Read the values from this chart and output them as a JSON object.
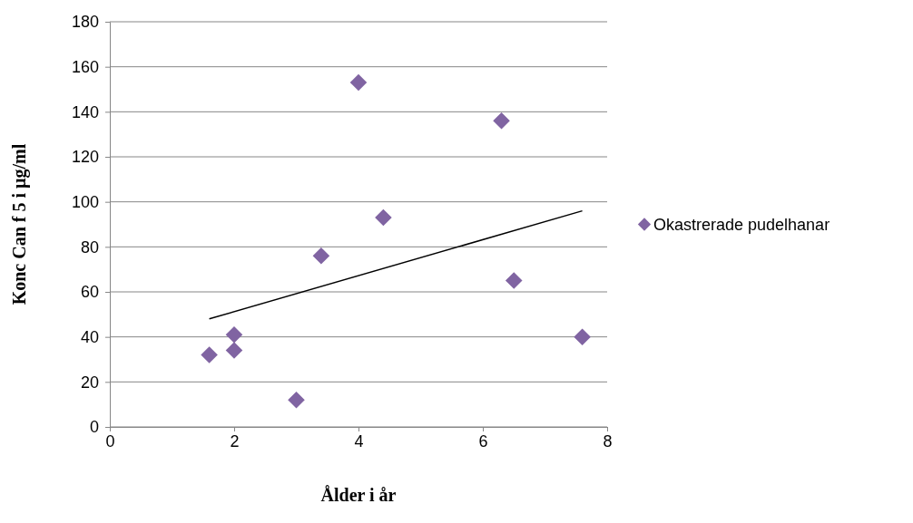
{
  "chart_data": {
    "type": "scatter",
    "xlabel": "Ålder i år",
    "ylabel": "Konc Can f 5 i µg/ml",
    "xlim": [
      0,
      8
    ],
    "xticks": [
      0,
      2,
      4,
      6,
      8
    ],
    "ylim": [
      0,
      180
    ],
    "yticks": [
      0,
      20,
      40,
      60,
      80,
      100,
      120,
      140,
      160,
      180
    ],
    "grid": "y",
    "legend": "right",
    "series": [
      {
        "name": "Okastrerade pudelhanar",
        "color": "#8064a2",
        "marker": "diamond",
        "x": [
          1.6,
          2,
          2,
          3,
          3.4,
          4,
          4.4,
          6.3,
          6.5,
          7.6
        ],
        "values": [
          32,
          41,
          34,
          12,
          76,
          153,
          93,
          136,
          65,
          40
        ]
      },
      {
        "type": "line",
        "marker": "none",
        "color": "#000000",
        "x": [
          1.6,
          7.6
        ],
        "values": [
          48,
          96
        ]
      }
    ]
  }
}
